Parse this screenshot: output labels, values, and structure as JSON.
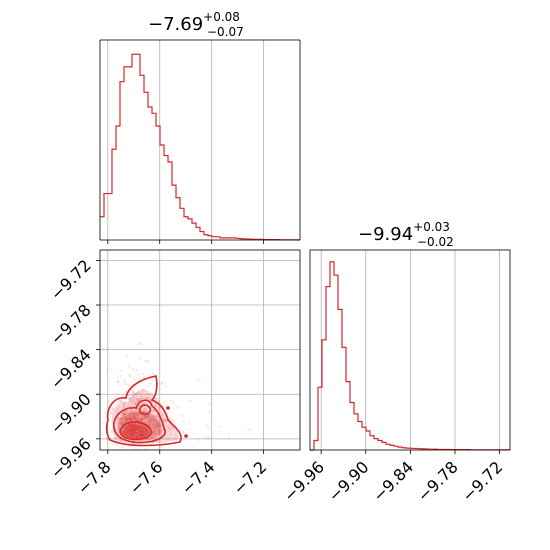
{
  "figure": {
    "type": "corner-plot",
    "color": "#d62728"
  },
  "chart_data": [
    {
      "type": "histogram",
      "panel": "param-1-marginal",
      "title": {
        "main": "−7.69",
        "sup": "+0.08",
        "sub": "−0.07"
      },
      "xlim": [
        -7.83,
        -7.06
      ],
      "x_edges_start": -7.83,
      "bin_width": 0.0154,
      "counts": [
        0.11,
        0.22,
        0.22,
        0.43,
        0.54,
        0.75,
        0.82,
        0.82,
        0.88,
        0.88,
        0.78,
        0.7,
        0.63,
        0.6,
        0.54,
        0.45,
        0.4,
        0.37,
        0.26,
        0.2,
        0.15,
        0.11,
        0.1,
        0.08,
        0.06,
        0.04,
        0.025,
        0.02,
        0.015,
        0.015,
        0.01,
        0.01,
        0.01,
        0.01,
        0.008,
        0.006,
        0.005,
        0.004,
        0.003,
        0.003,
        0.003,
        0.002,
        0.002,
        0.002,
        0.002,
        0.001,
        0.001,
        0.001,
        0.001,
        0.001
      ],
      "x_ticks": [
        -7.8,
        -7.6,
        -7.4,
        -7.2
      ],
      "grid": true
    },
    {
      "type": "histogram",
      "panel": "param-2-marginal",
      "title": {
        "main": "−9.94",
        "sup": "+0.03",
        "sub": "−0.02"
      },
      "xlim": [
        -9.975,
        -9.706
      ],
      "x_edges_start": -9.975,
      "bin_width": 0.00538,
      "counts": [
        0.0,
        0.05,
        0.33,
        0.58,
        0.86,
        0.99,
        0.92,
        0.74,
        0.54,
        0.36,
        0.25,
        0.19,
        0.15,
        0.12,
        0.1,
        0.075,
        0.06,
        0.05,
        0.04,
        0.03,
        0.025,
        0.02,
        0.015,
        0.012,
        0.01,
        0.009,
        0.008,
        0.007,
        0.006,
        0.005,
        0.004,
        0.004,
        0.003,
        0.003,
        0.003,
        0.002,
        0.002,
        0.002,
        0.002,
        0.002,
        0.001,
        0.001,
        0.001,
        0.001,
        0.001,
        0.001,
        0.001,
        0.001,
        0.001,
        0.001
      ],
      "x_ticks": [
        -9.96,
        -9.9,
        -9.84,
        -9.78,
        -9.72
      ],
      "x_tick_labels": [
        "−9.96",
        "−9.90",
        "−9.84",
        "−9.78",
        "−9.72"
      ],
      "grid": true
    },
    {
      "type": "scatter",
      "panel": "joint",
      "xlim": [
        -7.83,
        -7.06
      ],
      "ylim": [
        -9.975,
        -9.706
      ],
      "x_ticks": [
        -7.8,
        -7.6,
        -7.4,
        -7.2
      ],
      "x_tick_labels": [
        "−7.8",
        "−7.6",
        "−7.4",
        "−7.2"
      ],
      "y_ticks": [
        -9.96,
        -9.9,
        -9.84,
        -9.78,
        -9.72
      ],
      "y_tick_labels": [
        "−9.96",
        "−9.90",
        "−9.84",
        "−9.78",
        "−9.72"
      ],
      "density_peak": [
        -7.73,
        -9.955
      ],
      "contour_levels": [
        0.393,
        0.865,
        0.989
      ],
      "grid": true
    }
  ]
}
